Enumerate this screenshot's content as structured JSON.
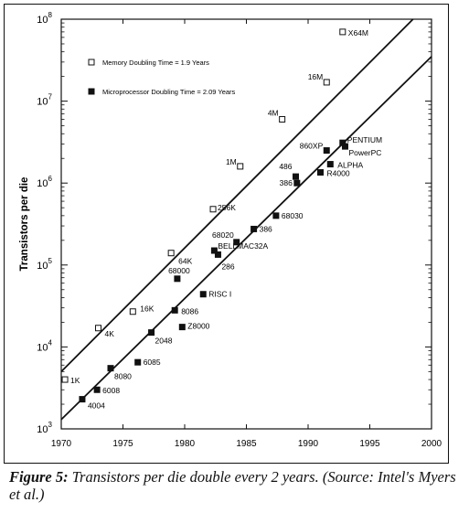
{
  "chart_data": {
    "type": "scatter",
    "yscale": "log",
    "xlim": [
      1970,
      2000
    ],
    "ylim_exp": [
      3,
      8
    ],
    "xticks": [
      "1970",
      "1975",
      "1980",
      "1985",
      "1990",
      "1995",
      "2000"
    ],
    "ytick_base": "10",
    "ytick_exponents": [
      "3",
      "4",
      "5",
      "6",
      "7",
      "8"
    ],
    "xlabel": "",
    "ylabel": "Transistors per die",
    "legend": [
      {
        "name": "Memory Doubling Time = 1.9 Years",
        "marker": "open-square"
      },
      {
        "name": "Microprocessor Doubling Time = 2.09 Years",
        "marker": "filled-square"
      }
    ],
    "series": [
      {
        "name": "Memory",
        "marker": "open-square",
        "trend": {
          "x": [
            1970,
            1998.5
          ],
          "y": [
            5000,
            100000000
          ]
        },
        "points": [
          {
            "label": "1K",
            "x": 1970.3,
            "y": 4000
          },
          {
            "label": "4K",
            "x": 1973.0,
            "y": 17000
          },
          {
            "label": "16K",
            "x": 1975.8,
            "y": 27000
          },
          {
            "label": "64K",
            "x": 1978.9,
            "y": 140000
          },
          {
            "label": "256K",
            "x": 1982.3,
            "y": 480000
          },
          {
            "label": "1M",
            "x": 1984.5,
            "y": 1600000
          },
          {
            "label": "4M",
            "x": 1987.9,
            "y": 6000000
          },
          {
            "label": "16M",
            "x": 1991.5,
            "y": 17000000
          },
          {
            "label": "X64M",
            "x": 1992.8,
            "y": 70000000
          }
        ]
      },
      {
        "name": "Microprocessor",
        "marker": "filled-square",
        "trend": {
          "x": [
            1970,
            2000
          ],
          "y": [
            1300,
            35000000
          ]
        },
        "points": [
          {
            "label": "4004",
            "x": 1971.7,
            "y": 2300
          },
          {
            "label": "6008",
            "x": 1972.9,
            "y": 3000
          },
          {
            "label": "8080",
            "x": 1974.0,
            "y": 5500
          },
          {
            "label": "6085",
            "x": 1976.2,
            "y": 6500
          },
          {
            "label": "2048",
            "x": 1977.3,
            "y": 15000
          },
          {
            "label": "Z8000",
            "x": 1979.8,
            "y": 17500
          },
          {
            "label": "8086",
            "x": 1979.2,
            "y": 28000
          },
          {
            "label": "RISC I",
            "x": 1981.5,
            "y": 44000
          },
          {
            "label": "68000",
            "x": 1979.4,
            "y": 68000
          },
          {
            "label": "286",
            "x": 1982.7,
            "y": 134000
          },
          {
            "label": "BELLMAC32A",
            "x": 1982.4,
            "y": 150000
          },
          {
            "label": "68020",
            "x": 1984.2,
            "y": 190000
          },
          {
            "label": "386",
            "x": 1985.6,
            "y": 275000
          },
          {
            "label": "68030",
            "x": 1987.4,
            "y": 400000
          },
          {
            "label": "386",
            "x": 1989.1,
            "y": 1000000
          },
          {
            "label": "486",
            "x": 1989.0,
            "y": 1200000
          },
          {
            "label": "R4000",
            "x": 1991.0,
            "y": 1350000
          },
          {
            "label": "ALPHA",
            "x": 1991.8,
            "y": 1700000
          },
          {
            "label": "860XP",
            "x": 1991.5,
            "y": 2500000
          },
          {
            "label": "PENTIUM",
            "x": 1992.8,
            "y": 3100000
          },
          {
            "label": "PowerPC",
            "x": 1993.0,
            "y": 2800000
          }
        ]
      }
    ]
  },
  "caption": {
    "label": "Figure 5:",
    "text": " Transistors per die double every 2 years. (Source: Intel's Myers et al.)"
  }
}
